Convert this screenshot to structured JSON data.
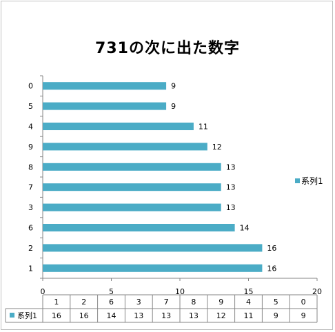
{
  "chart_data": {
    "type": "bar",
    "orientation": "horizontal",
    "title": "731の次に出た数字",
    "categories": [
      "1",
      "2",
      "6",
      "3",
      "7",
      "8",
      "9",
      "4",
      "5",
      "0"
    ],
    "series": [
      {
        "name": "系列1",
        "values": [
          16,
          16,
          14,
          13,
          13,
          13,
          12,
          11,
          9,
          9
        ]
      }
    ],
    "xlim": [
      0,
      20
    ],
    "x_ticks": [
      "0",
      "5",
      "10",
      "15",
      "20"
    ],
    "bar_color": "#4bacc6",
    "grid": false,
    "legend": "right",
    "data_table": true
  }
}
